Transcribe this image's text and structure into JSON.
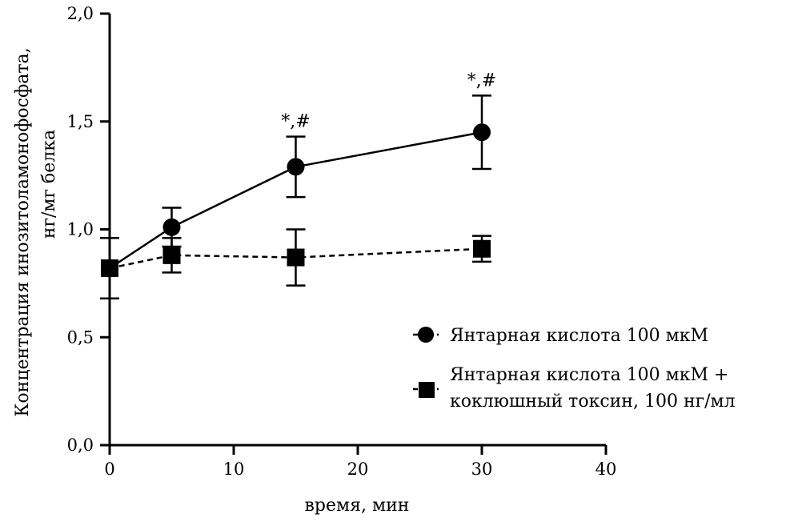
{
  "chart_data": {
    "type": "line",
    "xlabel": "время, мин",
    "ylabel_lines": [
      "Концентрация инозитоламонофосфата,",
      "нг/мг белка"
    ],
    "xlim": [
      0,
      40
    ],
    "ylim": [
      0,
      2.0
    ],
    "x_ticks": [
      "0",
      "10",
      "20",
      "30",
      "40"
    ],
    "y_ticks": [
      "0,0",
      "0,5",
      "1,0",
      "1,5",
      "2,0"
    ],
    "grid": false,
    "legend_position": "bottom-right",
    "series": [
      {
        "name": "Янтарная кислота 100 мкМ",
        "marker": "circle",
        "line_style": "solid",
        "x": [
          0,
          5,
          15,
          30
        ],
        "y": [
          0.82,
          1.01,
          1.29,
          1.45
        ],
        "y_error": [
          0.14,
          0.09,
          0.14,
          0.17
        ]
      },
      {
        "name_lines": [
          "Янтарная кислота 100 мкМ +",
          "коклюшный токсин, 100 нг/мл"
        ],
        "marker": "square",
        "line_style": "dashed",
        "x": [
          0,
          5,
          15,
          30
        ],
        "y": [
          0.82,
          0.88,
          0.87,
          0.91
        ],
        "y_error": [
          0.14,
          0.08,
          0.13,
          0.06
        ]
      }
    ],
    "annotations": [
      {
        "x": 15,
        "text": "*,#"
      },
      {
        "x": 30,
        "text": "*,#"
      }
    ]
  }
}
